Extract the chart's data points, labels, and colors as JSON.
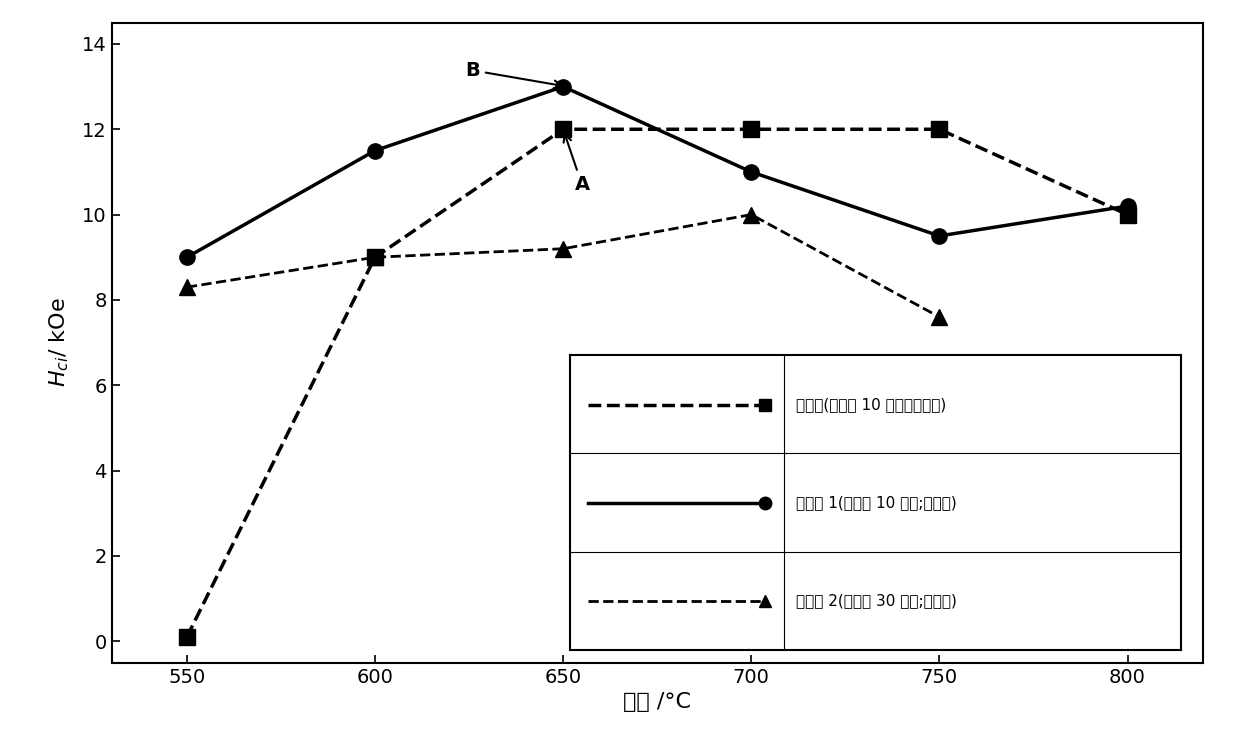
{
  "series1": {
    "x": [
      550,
      600,
      650,
      700,
      750,
      800
    ],
    "y": [
      0.1,
      9.0,
      12.0,
      12.0,
      12.0,
      10.0
    ],
    "label": "对比例(热处理 10 分钟；无涂覆)",
    "marker": "s",
    "linestyle": "--",
    "color": "#000000",
    "markersize": 11,
    "linewidth": 2.5
  },
  "series2": {
    "x": [
      550,
      600,
      650,
      700,
      750,
      800
    ],
    "y": [
      9.0,
      11.5,
      13.0,
      11.0,
      9.5,
      10.2
    ],
    "label": "实施例 1(热处理 10 分钟;有涂覆)",
    "marker": "o",
    "linestyle": "-",
    "color": "#000000",
    "markersize": 11,
    "linewidth": 2.5
  },
  "series3": {
    "x": [
      550,
      600,
      650,
      700,
      750
    ],
    "y": [
      8.3,
      9.0,
      9.2,
      10.0,
      7.6
    ],
    "label": "实施例 2(热处理 30 分钟;有涂覆)",
    "marker": "^",
    "linestyle": "--",
    "color": "#000000",
    "markersize": 11,
    "linewidth": 2.0
  },
  "xlabel": "温度 /°C",
  "ylabel": "$H_{ci}$/ kOe",
  "xlim": [
    530,
    820
  ],
  "ylim": [
    -0.5,
    14.5
  ],
  "yticks": [
    0,
    2,
    4,
    6,
    8,
    10,
    12,
    14
  ],
  "xticks": [
    550,
    600,
    650,
    700,
    750,
    800
  ],
  "background_color": "#ffffff"
}
